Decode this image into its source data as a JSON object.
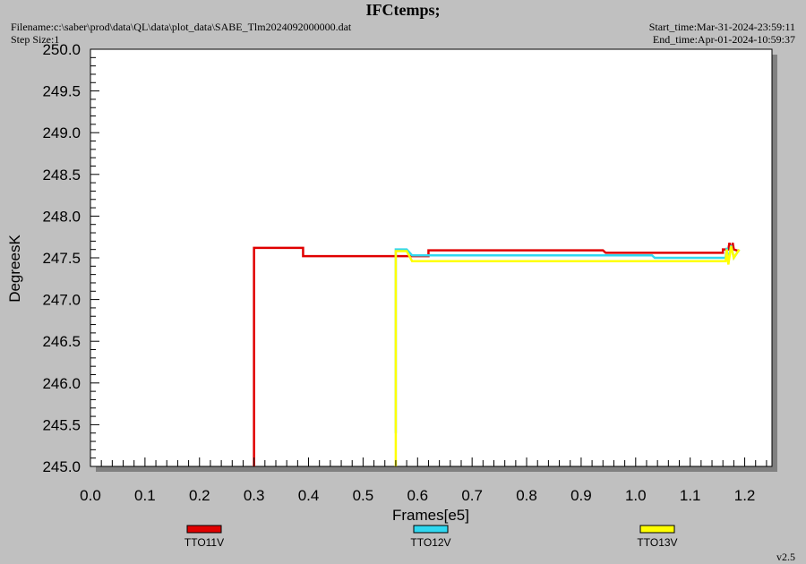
{
  "chart_data": {
    "type": "line",
    "title": "IFCtemps;",
    "filename": "Filename:c:\\saber\\prod\\data\\QL\\data\\plot_data\\SABE_Tlm2024092000000.dat",
    "step_size": "Step Size:1",
    "start_time": "Start_time:Mar-31-2024-23:59:11",
    "end_time": "End_time:Apr-01-2024-10:59:37",
    "version": "v2.5",
    "x_label": "Frames[e5]",
    "y_label": "DegreesK",
    "xlim": [
      0,
      1.25
    ],
    "ylim": [
      245,
      250
    ],
    "xticks": [
      {
        "value": 0,
        "label": "0.0"
      },
      {
        "value": 0.1,
        "label": "0.1"
      },
      {
        "value": 0.2,
        "label": "0.2"
      },
      {
        "value": 0.3,
        "label": "0.3"
      },
      {
        "value": 0.4,
        "label": "0.4"
      },
      {
        "value": 0.5,
        "label": "0.5"
      },
      {
        "value": 0.6,
        "label": "0.6"
      },
      {
        "value": 0.7,
        "label": "0.7"
      },
      {
        "value": 0.8,
        "label": "0.8"
      },
      {
        "value": 0.9,
        "label": "0.9"
      },
      {
        "value": 1,
        "label": "1.0"
      },
      {
        "value": 1.1,
        "label": "1.1"
      },
      {
        "value": 1.2,
        "label": "1.2"
      }
    ],
    "yticks": [
      {
        "value": 245,
        "label": "245.0"
      },
      {
        "value": 245.5,
        "label": "245.5"
      },
      {
        "value": 246,
        "label": "246.0"
      },
      {
        "value": 246.5,
        "label": "246.5"
      },
      {
        "value": 247,
        "label": "247.0"
      },
      {
        "value": 247.5,
        "label": "247.5"
      },
      {
        "value": 248,
        "label": "248.0"
      },
      {
        "value": 248.5,
        "label": "248.5"
      },
      {
        "value": 249,
        "label": "249.0"
      },
      {
        "value": 249.5,
        "label": "249.5"
      },
      {
        "value": 250,
        "label": "250.0"
      }
    ],
    "series": [
      {
        "name": "TTO11V",
        "color": "#e00000",
        "x": [
          0.3,
          0.3,
          0.39,
          0.39,
          0.62,
          0.62,
          0.94,
          0.945,
          1.16,
          1.16,
          1.17,
          1.172,
          1.175,
          1.178,
          1.18,
          1.19
        ],
        "values": [
          245,
          247.62,
          247.62,
          247.52,
          247.52,
          247.59,
          247.59,
          247.56,
          247.56,
          247.6,
          247.6,
          247.68,
          247.58,
          247.68,
          247.6,
          247.58
        ]
      },
      {
        "name": "TTO12V",
        "color": "#30d8f0",
        "x": [
          0.56,
          0.56,
          0.565,
          0.58,
          0.59,
          1.03,
          1.035,
          1.165,
          1.167,
          1.17,
          1.175,
          1.18,
          1.19
        ],
        "values": [
          245.4,
          247.6,
          247.6,
          247.6,
          247.53,
          247.53,
          247.5,
          247.5,
          247.62,
          247.45,
          247.65,
          247.5,
          247.6
        ]
      },
      {
        "name": "TTO13V",
        "color": "#ffff00",
        "x": [
          0.56,
          0.56,
          0.58,
          0.59,
          1.165,
          1.167,
          1.17,
          1.175,
          1.18,
          1.19
        ],
        "values": [
          245,
          247.58,
          247.58,
          247.46,
          247.46,
          247.6,
          247.42,
          247.64,
          247.5,
          247.6
        ]
      }
    ]
  }
}
